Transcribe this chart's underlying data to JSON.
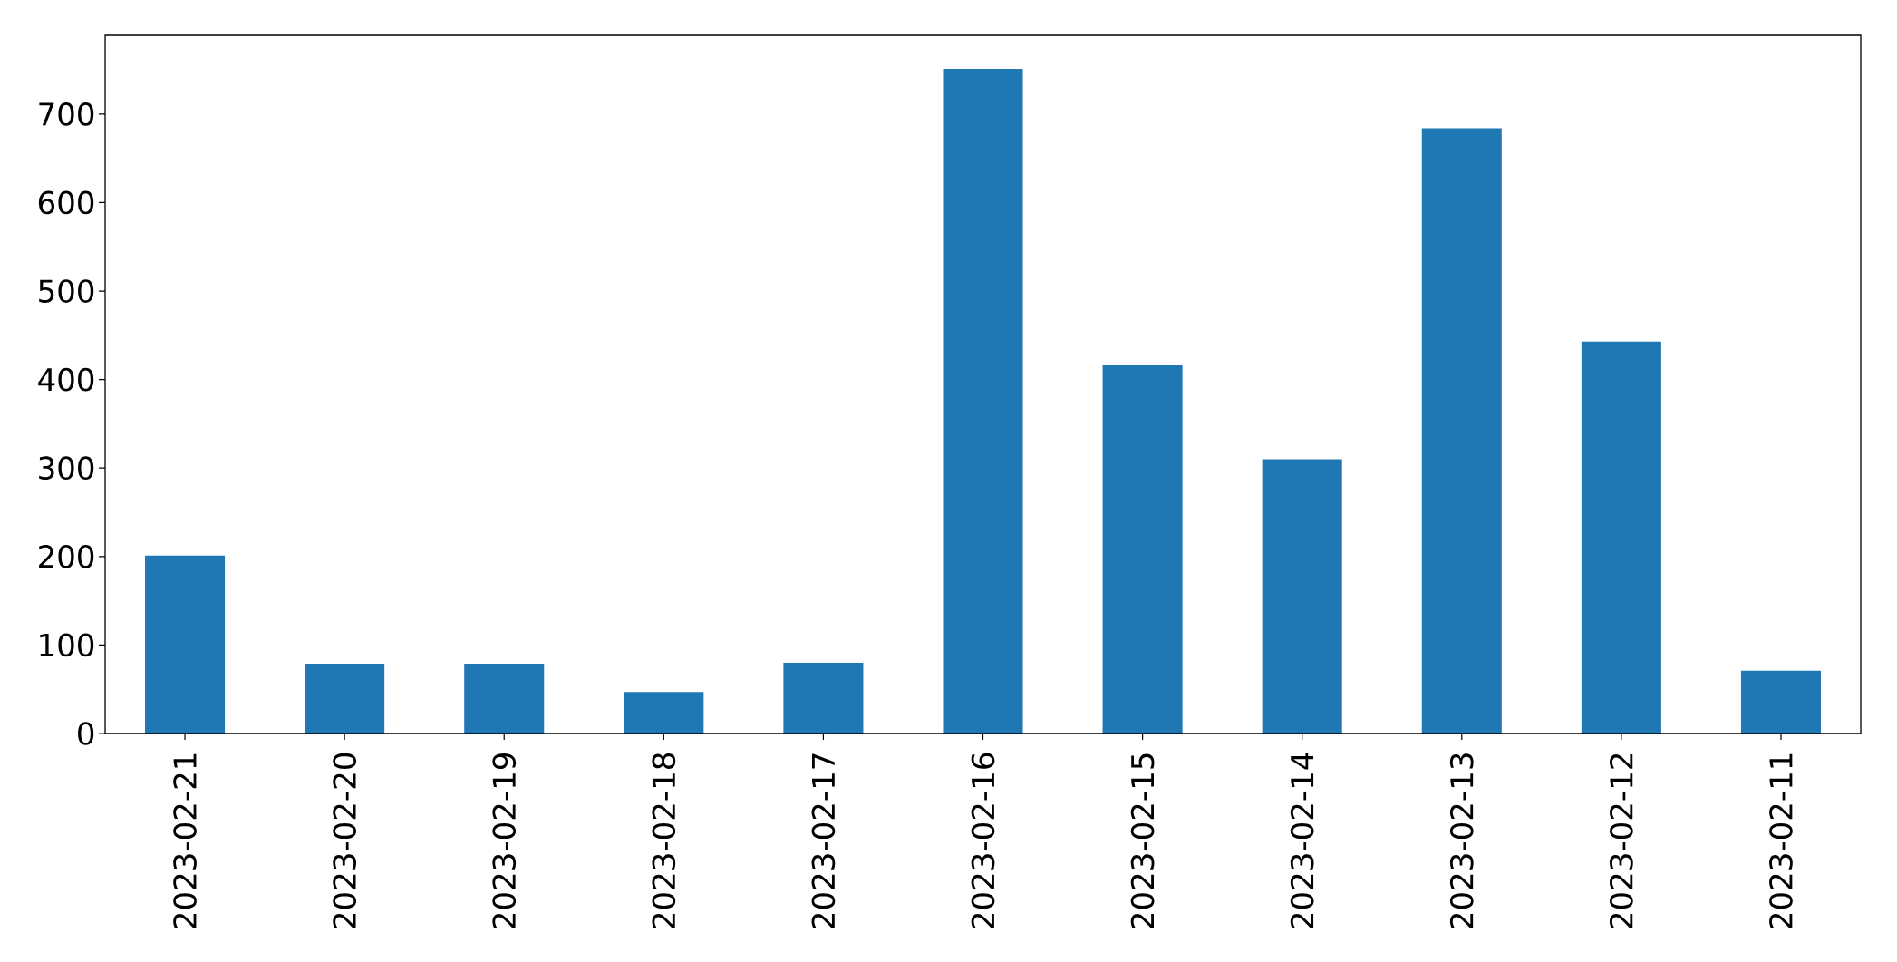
{
  "chart_data": {
    "type": "bar",
    "categories": [
      "2023-02-21",
      "2023-02-20",
      "2023-02-19",
      "2023-02-18",
      "2023-02-17",
      "2023-02-16",
      "2023-02-15",
      "2023-02-14",
      "2023-02-13",
      "2023-02-12",
      "2023-02-11"
    ],
    "values": [
      201,
      79,
      79,
      47,
      80,
      751,
      416,
      310,
      684,
      443,
      71
    ],
    "color": "#1f77b4",
    "ylim": [
      0,
      789
    ],
    "yticks": [
      0,
      100,
      200,
      300,
      400,
      500,
      600,
      700
    ]
  }
}
